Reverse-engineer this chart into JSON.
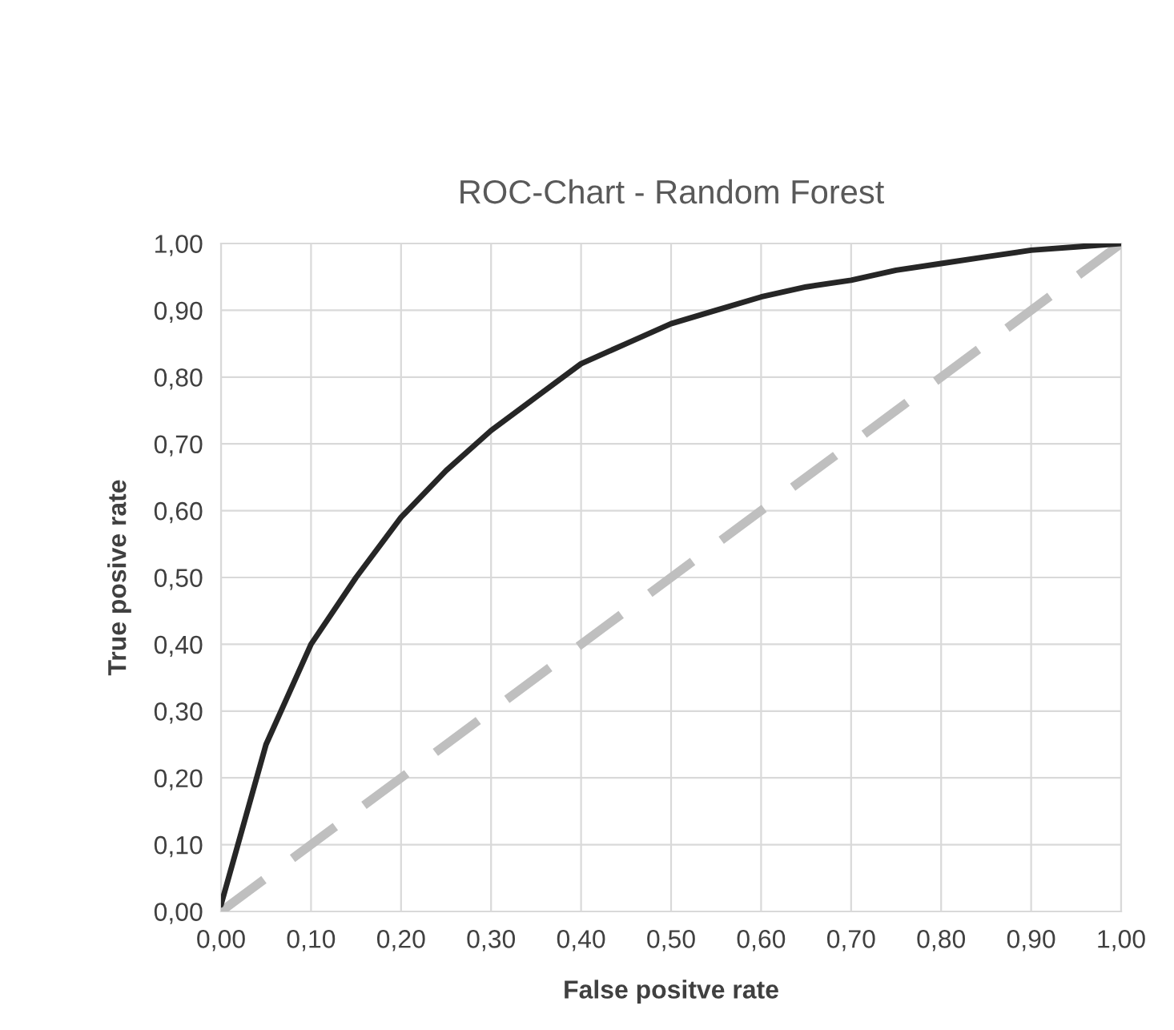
{
  "chart_data": {
    "type": "line",
    "title": "ROC-Chart - Random Forest",
    "xlabel": "False positve rate",
    "ylabel": "True posive rate",
    "series": [
      {
        "color": "#262626",
        "line_style": "solid",
        "x": [
          0,
          0.05,
          0.1,
          0.15,
          0.2,
          0.25,
          0.3,
          0.35,
          0.4,
          0.45,
          0.5,
          0.55,
          0.6,
          0.65,
          0.7,
          0.75,
          0.8,
          0.85,
          0.9,
          0.95,
          1.0
        ],
        "values": [
          0.01,
          0.25,
          0.4,
          0.5,
          0.59,
          0.66,
          0.72,
          0.77,
          0.82,
          0.85,
          0.88,
          0.9,
          0.92,
          0.935,
          0.945,
          0.96,
          0.97,
          0.98,
          0.99,
          0.995,
          1.0
        ]
      },
      {
        "color": "#bfbfbf",
        "line_style": "dashed",
        "x": [
          0,
          1
        ],
        "values": [
          0,
          1
        ]
      }
    ],
    "xlim": [
      0,
      1
    ],
    "ylim": [
      0,
      1
    ],
    "xticks": [
      {
        "value": 0,
        "label": "0,00"
      },
      {
        "value": 0.1,
        "label": "0,10"
      },
      {
        "value": 0.2,
        "label": "0,20"
      },
      {
        "value": 0.3,
        "label": "0,30"
      },
      {
        "value": 0.4,
        "label": "0,40"
      },
      {
        "value": 0.5,
        "label": "0,50"
      },
      {
        "value": 0.6,
        "label": "0,60"
      },
      {
        "value": 0.7,
        "label": "0,70"
      },
      {
        "value": 0.8,
        "label": "0,80"
      },
      {
        "value": 0.9,
        "label": "0,90"
      },
      {
        "value": 1,
        "label": "1,00"
      }
    ],
    "yticks": [
      {
        "value": 0,
        "label": "0,00"
      },
      {
        "value": 0.1,
        "label": "0,10"
      },
      {
        "value": 0.2,
        "label": "0,20"
      },
      {
        "value": 0.3,
        "label": "0,30"
      },
      {
        "value": 0.4,
        "label": "0,40"
      },
      {
        "value": 0.5,
        "label": "0,50"
      },
      {
        "value": 0.6,
        "label": "0,60"
      },
      {
        "value": 0.7,
        "label": "0,70"
      },
      {
        "value": 0.8,
        "label": "0,80"
      },
      {
        "value": 0.9,
        "label": "0,90"
      },
      {
        "value": 1,
        "label": "1,00"
      }
    ],
    "grid": true,
    "legend": false
  }
}
